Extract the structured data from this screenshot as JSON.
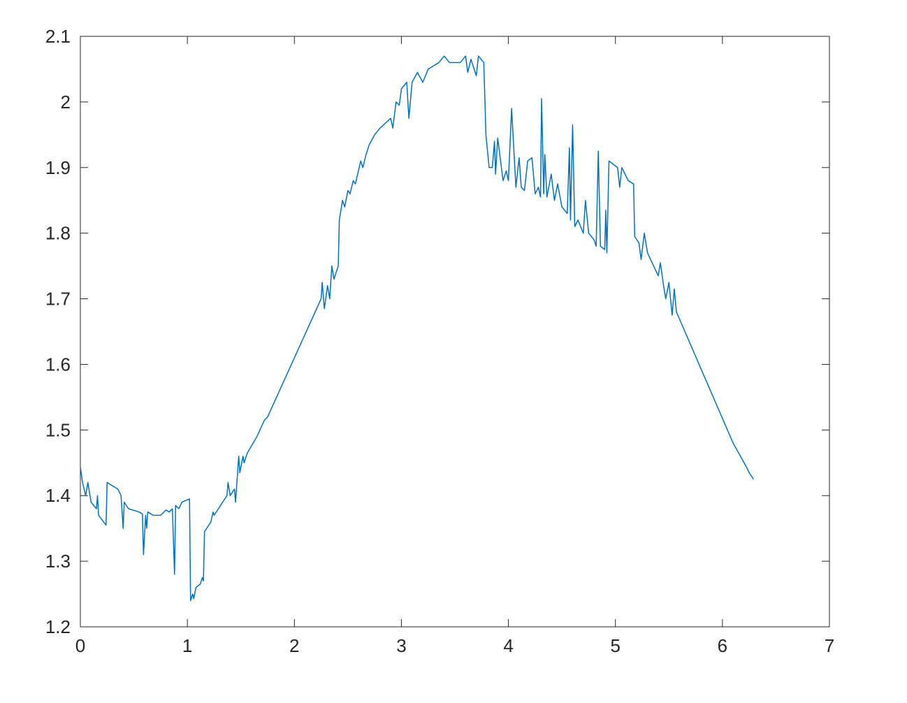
{
  "chart_data": {
    "type": "line",
    "x": [
      0,
      0.02,
      0.05,
      0.07,
      0.1,
      0.15,
      0.16,
      0.17,
      0.24,
      0.25,
      0.35,
      0.38,
      0.4,
      0.41,
      0.45,
      0.55,
      0.58,
      0.59,
      0.61,
      0.62,
      0.63,
      0.68,
      0.75,
      0.8,
      0.83,
      0.86,
      0.88,
      0.89,
      0.92,
      0.95,
      1.02,
      1.03,
      1.05,
      1.06,
      1.08,
      1.12,
      1.14,
      1.15,
      1.16,
      1.22,
      1.24,
      1.25,
      1.37,
      1.38,
      1.4,
      1.44,
      1.45,
      1.48,
      1.49,
      1.52,
      1.53,
      1.56,
      1.65,
      1.72,
      1.75,
      2.25,
      2.26,
      2.28,
      2.31,
      2.33,
      2.35,
      2.37,
      2.41,
      2.42,
      2.45,
      2.47,
      2.5,
      2.52,
      2.55,
      2.57,
      2.62,
      2.64,
      2.67,
      2.7,
      2.75,
      2.8,
      2.9,
      2.92,
      2.95,
      2.98,
      3.0,
      3.05,
      3.07,
      3.1,
      3.15,
      3.2,
      3.25,
      3.3,
      3.35,
      3.4,
      3.45,
      3.55,
      3.6,
      3.62,
      3.65,
      3.7,
      3.72,
      3.77,
      3.79,
      3.82,
      3.85,
      3.87,
      3.88,
      3.9,
      3.95,
      3.98,
      4.0,
      4.03,
      4.07,
      4.1,
      4.12,
      4.15,
      4.18,
      4.22,
      4.25,
      4.28,
      4.3,
      4.31,
      4.33,
      4.34,
      4.36,
      4.4,
      4.43,
      4.46,
      4.5,
      4.55,
      4.57,
      4.58,
      4.6,
      4.62,
      4.65,
      4.7,
      4.72,
      4.75,
      4.8,
      4.82,
      4.84,
      4.86,
      4.9,
      4.91,
      4.92,
      4.94,
      5.02,
      5.04,
      5.06,
      5.12,
      5.17,
      5.18,
      5.22,
      5.24,
      5.27,
      5.3,
      5.4,
      5.42,
      5.45,
      5.47,
      5.5,
      5.53,
      5.55,
      5.57,
      6.1,
      6.22,
      6.25,
      6.29
    ],
    "series": [
      {
        "color": "#0072bd",
        "values": [
          1.444,
          1.42,
          1.4,
          1.42,
          1.39,
          1.38,
          1.4,
          1.37,
          1.355,
          1.42,
          1.41,
          1.4,
          1.35,
          1.39,
          1.38,
          1.375,
          1.372,
          1.31,
          1.37,
          1.35,
          1.375,
          1.37,
          1.37,
          1.378,
          1.375,
          1.38,
          1.28,
          1.385,
          1.38,
          1.39,
          1.395,
          1.24,
          1.25,
          1.243,
          1.26,
          1.265,
          1.275,
          1.27,
          1.345,
          1.36,
          1.375,
          1.37,
          1.4,
          1.42,
          1.4,
          1.41,
          1.39,
          1.46,
          1.435,
          1.46,
          1.45,
          1.465,
          1.49,
          1.515,
          1.52,
          1.7,
          1.725,
          1.685,
          1.72,
          1.7,
          1.75,
          1.73,
          1.75,
          1.82,
          1.85,
          1.84,
          1.865,
          1.86,
          1.88,
          1.875,
          1.91,
          1.9,
          1.92,
          1.935,
          1.95,
          1.96,
          1.975,
          1.96,
          2.0,
          1.995,
          2.02,
          2.03,
          1.975,
          2.03,
          2.045,
          2.03,
          2.05,
          2.055,
          2.06,
          2.07,
          2.06,
          2.06,
          2.07,
          2.045,
          2.065,
          2.04,
          2.07,
          2.06,
          1.95,
          1.9,
          1.9,
          1.94,
          1.89,
          1.945,
          1.88,
          1.895,
          1.88,
          1.99,
          1.87,
          1.915,
          1.87,
          1.865,
          1.91,
          1.915,
          1.86,
          1.87,
          1.855,
          2.005,
          1.86,
          1.92,
          1.855,
          1.89,
          1.85,
          1.875,
          1.84,
          1.83,
          1.93,
          1.82,
          1.965,
          1.81,
          1.82,
          1.8,
          1.85,
          1.8,
          1.79,
          1.78,
          1.925,
          1.78,
          1.775,
          1.835,
          1.77,
          1.91,
          1.9,
          1.87,
          1.9,
          1.88,
          1.875,
          1.795,
          1.785,
          1.76,
          1.8,
          1.77,
          1.735,
          1.755,
          1.72,
          1.7,
          1.725,
          1.675,
          1.715,
          1.68,
          1.48,
          1.445,
          1.435,
          1.425
        ]
      }
    ],
    "xlim": [
      0,
      7
    ],
    "xticks": [
      0,
      1,
      2,
      3,
      4,
      5,
      6,
      7
    ],
    "ylim": [
      1.2,
      2.1
    ],
    "yticks": [
      1.2,
      1.3,
      1.4,
      1.5,
      1.6,
      1.7,
      1.8,
      1.9,
      2,
      2.1
    ]
  }
}
